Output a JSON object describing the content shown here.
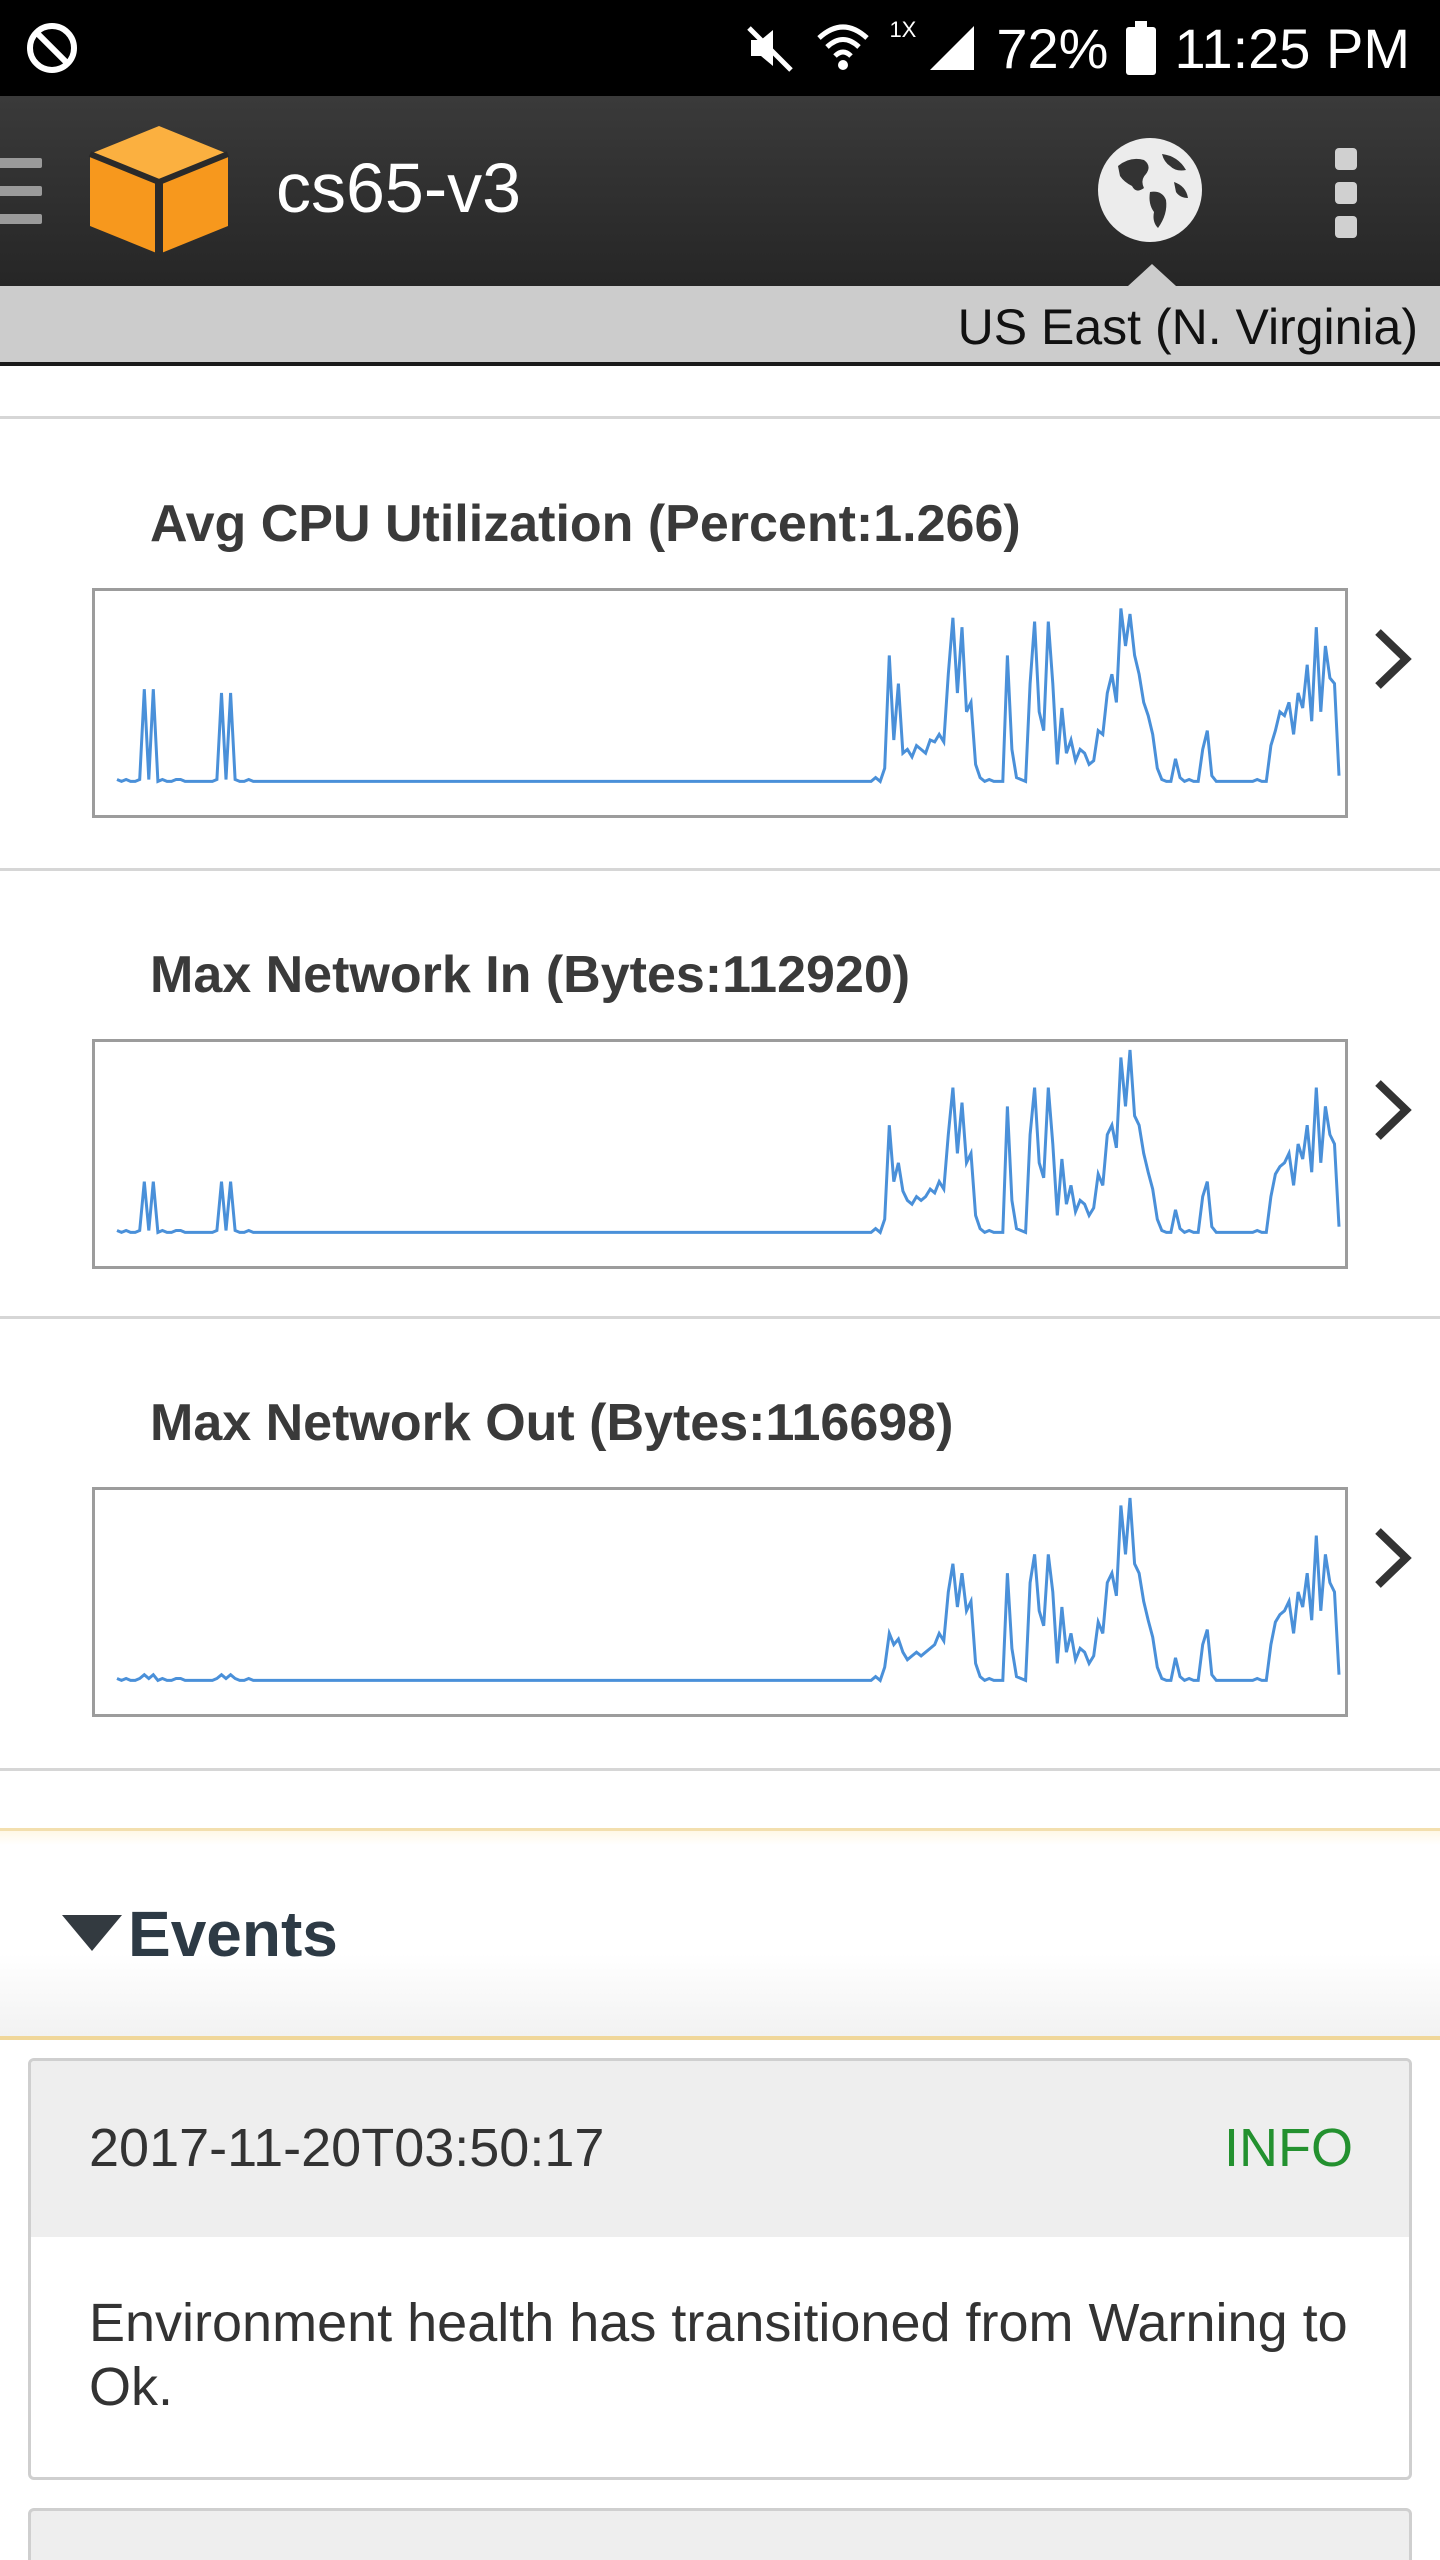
{
  "status_bar": {
    "battery": "72%",
    "time": "11:25 PM",
    "network_type": "1X",
    "icons": [
      "do-not-disturb-icon",
      "mute-icon",
      "wifi-icon",
      "signal-icon",
      "battery-icon"
    ]
  },
  "app_bar": {
    "title": "cs65-v3",
    "icons": [
      "hamburger-menu-icon",
      "aws-cube-logo",
      "globe-icon",
      "more-vert-icon"
    ]
  },
  "region": {
    "label": "US East (N. Virginia)"
  },
  "metrics": [
    {
      "title": "Avg CPU Utilization (Percent:1.266)"
    },
    {
      "title": "Max Network In (Bytes:112920)"
    },
    {
      "title": "Max Network Out (Bytes:116698)"
    }
  ],
  "chart_data": [
    {
      "type": "line",
      "series": [
        {
          "values": [
            4,
            3,
            4,
            3,
            3,
            4,
            52,
            4,
            52,
            3,
            4,
            3,
            3,
            4,
            4,
            3,
            3,
            3,
            3,
            3,
            3,
            3,
            4,
            50,
            4,
            50,
            4,
            3,
            3,
            4,
            3,
            3,
            3,
            3,
            3,
            3,
            3,
            3,
            3,
            3,
            3,
            3,
            3,
            3,
            3,
            3,
            3,
            3,
            3,
            3,
            3,
            3,
            3,
            3,
            3,
            3,
            3,
            3,
            3,
            3,
            3,
            3,
            3,
            3,
            3,
            3,
            3,
            3,
            3,
            3,
            3,
            3,
            3,
            3,
            3,
            3,
            3,
            3,
            3,
            3,
            3,
            3,
            3,
            3,
            3,
            3,
            3,
            3,
            3,
            3,
            3,
            3,
            3,
            3,
            3,
            3,
            3,
            3,
            3,
            3,
            3,
            3,
            3,
            3,
            3,
            3,
            3,
            3,
            3,
            3,
            3,
            3,
            3,
            3,
            3,
            3,
            3,
            3,
            3,
            3,
            3,
            3,
            3,
            3,
            3,
            3,
            3,
            3,
            3,
            3,
            3,
            3,
            3,
            3,
            3,
            3,
            3,
            3,
            3,
            3,
            3,
            3,
            3,
            3,
            3,
            3,
            3,
            3,
            3,
            3,
            3,
            3,
            3,
            3,
            3,
            3,
            3,
            3,
            3,
            3,
            3,
            3,
            3,
            3,
            3,
            3,
            3,
            5,
            3,
            10,
            70,
            25,
            55,
            18,
            20,
            16,
            22,
            20,
            18,
            25,
            24,
            28,
            24,
            60,
            90,
            50,
            85,
            40,
            45,
            12,
            5,
            3,
            4,
            3,
            3,
            3,
            70,
            20,
            5,
            4,
            3,
            55,
            88,
            40,
            30,
            88,
            55,
            12,
            42,
            18,
            25,
            14,
            20,
            18,
            12,
            14,
            30,
            28,
            50,
            60,
            45,
            95,
            75,
            92,
            70,
            60,
            45,
            38,
            28,
            10,
            4,
            3,
            3,
            15,
            5,
            3,
            4,
            3,
            3,
            20,
            30,
            6,
            3,
            3,
            3,
            3,
            3,
            3,
            3,
            3,
            3,
            4,
            3,
            3,
            22,
            30,
            40,
            38,
            45,
            28,
            50,
            42,
            65,
            35,
            85,
            40,
            75,
            58,
            55,
            6
          ]
        }
      ]
    },
    {
      "type": "line",
      "series": [
        {
          "values": [
            4,
            3,
            4,
            3,
            3,
            4,
            30,
            4,
            30,
            3,
            4,
            3,
            3,
            4,
            4,
            3,
            3,
            3,
            3,
            3,
            3,
            3,
            4,
            30,
            4,
            30,
            4,
            3,
            3,
            4,
            3,
            3,
            3,
            3,
            3,
            3,
            3,
            3,
            3,
            3,
            3,
            3,
            3,
            3,
            3,
            3,
            3,
            3,
            3,
            3,
            3,
            3,
            3,
            3,
            3,
            3,
            3,
            3,
            3,
            3,
            3,
            3,
            3,
            3,
            3,
            3,
            3,
            3,
            3,
            3,
            3,
            3,
            3,
            3,
            3,
            3,
            3,
            3,
            3,
            3,
            3,
            3,
            3,
            3,
            3,
            3,
            3,
            3,
            3,
            3,
            3,
            3,
            3,
            3,
            3,
            3,
            3,
            3,
            3,
            3,
            3,
            3,
            3,
            3,
            3,
            3,
            3,
            3,
            3,
            3,
            3,
            3,
            3,
            3,
            3,
            3,
            3,
            3,
            3,
            3,
            3,
            3,
            3,
            3,
            3,
            3,
            3,
            3,
            3,
            3,
            3,
            3,
            3,
            3,
            3,
            3,
            3,
            3,
            3,
            3,
            3,
            3,
            3,
            3,
            3,
            3,
            3,
            3,
            3,
            3,
            3,
            3,
            3,
            3,
            3,
            3,
            3,
            3,
            3,
            3,
            3,
            3,
            3,
            3,
            3,
            3,
            3,
            5,
            3,
            10,
            60,
            30,
            40,
            25,
            20,
            18,
            22,
            20,
            22,
            26,
            24,
            30,
            26,
            55,
            80,
            45,
            72,
            40,
            45,
            12,
            5,
            3,
            4,
            3,
            3,
            3,
            70,
            20,
            5,
            4,
            3,
            55,
            80,
            40,
            32,
            80,
            50,
            12,
            42,
            18,
            28,
            14,
            20,
            18,
            12,
            16,
            34,
            28,
            55,
            60,
            48,
            96,
            70,
            100,
            65,
            60,
            45,
            35,
            26,
            10,
            4,
            3,
            3,
            15,
            5,
            3,
            4,
            3,
            3,
            22,
            30,
            6,
            3,
            3,
            3,
            3,
            3,
            3,
            3,
            3,
            3,
            4,
            3,
            3,
            22,
            34,
            38,
            40,
            45,
            28,
            50,
            42,
            60,
            35,
            80,
            40,
            70,
            55,
            50,
            6
          ]
        }
      ]
    },
    {
      "type": "line",
      "series": [
        {
          "values": [
            4,
            3,
            4,
            3,
            3,
            4,
            6,
            4,
            6,
            3,
            4,
            3,
            3,
            4,
            4,
            3,
            3,
            3,
            3,
            3,
            3,
            3,
            4,
            6,
            4,
            6,
            4,
            3,
            3,
            4,
            3,
            3,
            3,
            3,
            3,
            3,
            3,
            3,
            3,
            3,
            3,
            3,
            3,
            3,
            3,
            3,
            3,
            3,
            3,
            3,
            3,
            3,
            3,
            3,
            3,
            3,
            3,
            3,
            3,
            3,
            3,
            3,
            3,
            3,
            3,
            3,
            3,
            3,
            3,
            3,
            3,
            3,
            3,
            3,
            3,
            3,
            3,
            3,
            3,
            3,
            3,
            3,
            3,
            3,
            3,
            3,
            3,
            3,
            3,
            3,
            3,
            3,
            3,
            3,
            3,
            3,
            3,
            3,
            3,
            3,
            3,
            3,
            3,
            3,
            3,
            3,
            3,
            3,
            3,
            3,
            3,
            3,
            3,
            3,
            3,
            3,
            3,
            3,
            3,
            3,
            3,
            3,
            3,
            3,
            3,
            3,
            3,
            3,
            3,
            3,
            3,
            3,
            3,
            3,
            3,
            3,
            3,
            3,
            3,
            3,
            3,
            3,
            3,
            3,
            3,
            3,
            3,
            3,
            3,
            3,
            3,
            3,
            3,
            3,
            3,
            3,
            3,
            3,
            3,
            3,
            3,
            3,
            3,
            3,
            3,
            3,
            3,
            5,
            3,
            10,
            28,
            22,
            25,
            18,
            14,
            16,
            18,
            16,
            18,
            20,
            22,
            28,
            24,
            50,
            65,
            42,
            60,
            40,
            45,
            12,
            5,
            3,
            4,
            3,
            3,
            3,
            60,
            20,
            5,
            4,
            3,
            55,
            70,
            40,
            32,
            70,
            50,
            12,
            42,
            18,
            28,
            14,
            20,
            18,
            12,
            16,
            34,
            28,
            55,
            60,
            48,
            96,
            70,
            100,
            65,
            60,
            45,
            35,
            26,
            10,
            4,
            3,
            3,
            15,
            5,
            3,
            4,
            3,
            3,
            22,
            30,
            6,
            3,
            3,
            3,
            3,
            3,
            3,
            3,
            3,
            3,
            4,
            3,
            3,
            22,
            34,
            38,
            40,
            45,
            28,
            50,
            42,
            60,
            35,
            80,
            40,
            70,
            55,
            50,
            6
          ]
        }
      ]
    }
  ],
  "events": {
    "label": "Events",
    "items": [
      {
        "timestamp": "2017-11-20T03:50:17",
        "level": "INFO",
        "message": "Environment health has transitioned from Warning to Ok."
      }
    ]
  },
  "colors": {
    "line": "#4a90d9",
    "info": "#23912f",
    "accent": "#f7981d"
  }
}
